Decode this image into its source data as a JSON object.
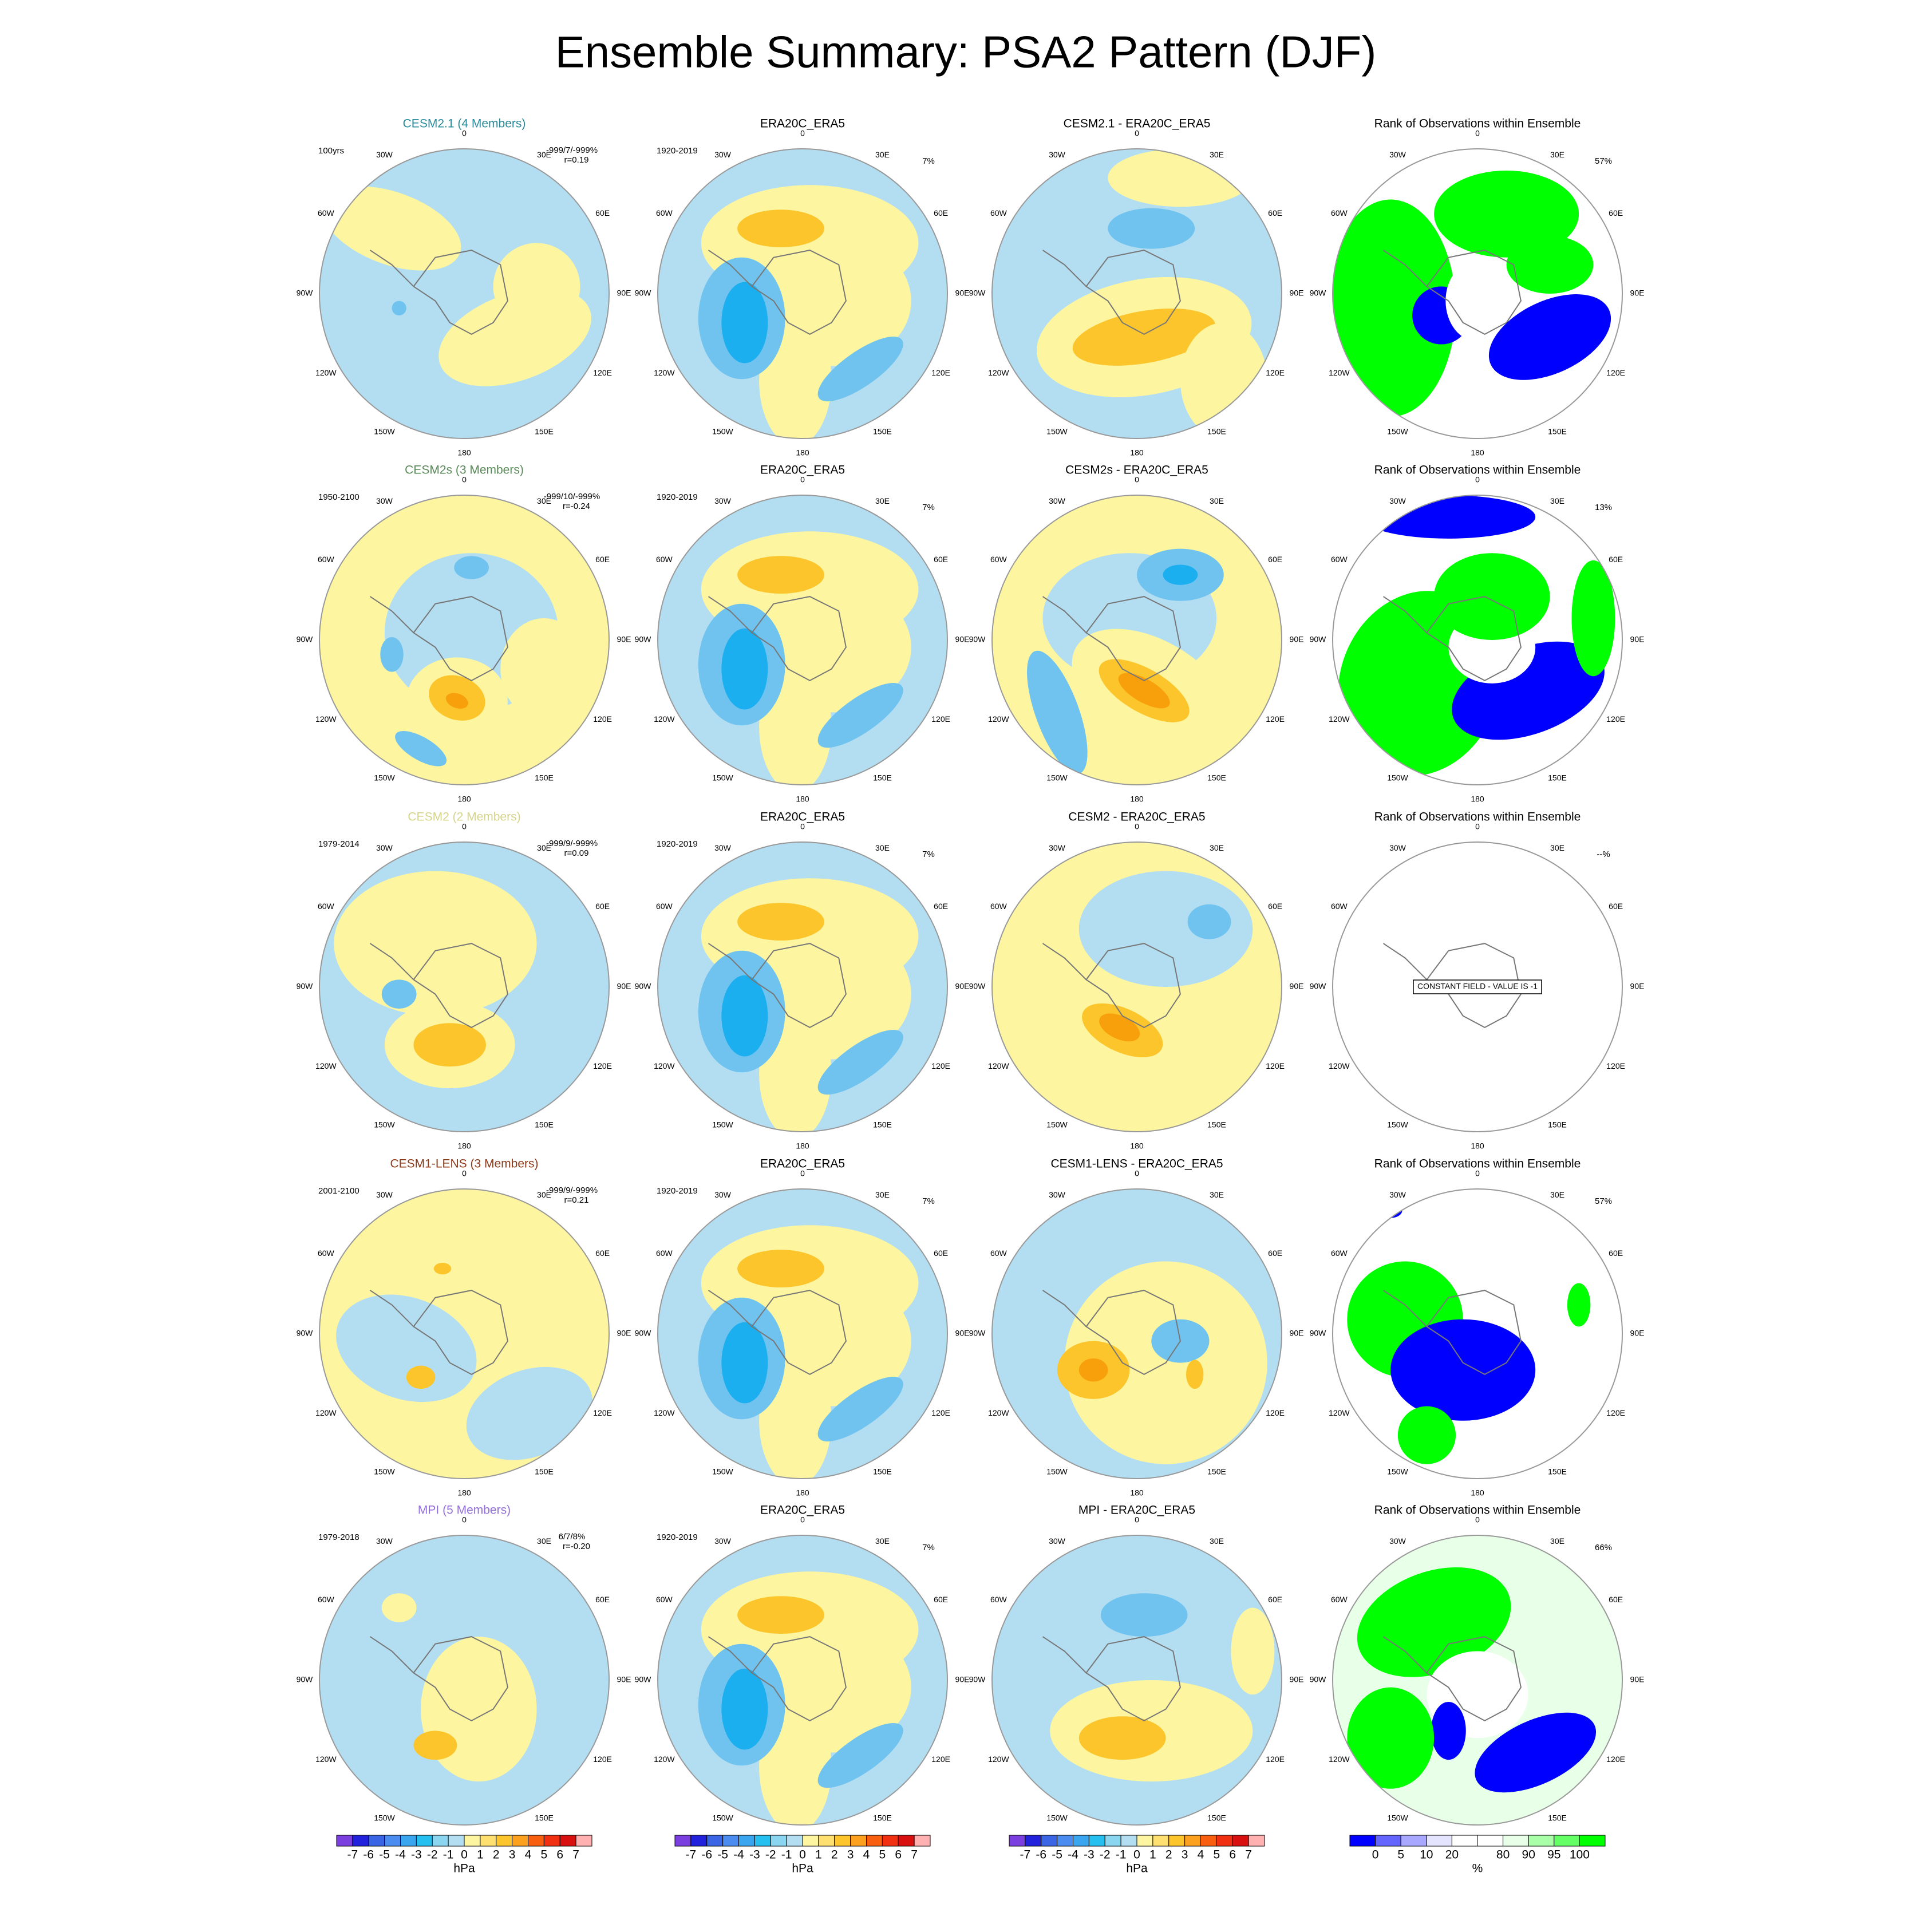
{
  "title": "Ensemble Summary: PSA2 Pattern (DJF)",
  "lon_labels": [
    "0",
    "30E",
    "60E",
    "90E",
    "120E",
    "150E",
    "180",
    "150W",
    "120W",
    "90W",
    "60W",
    "30W"
  ],
  "rows": [
    {
      "model": {
        "title": "CESM2.1 (4 Members)",
        "color": "#2a8a9a",
        "period": "100yrs",
        "stats": "-999/7/-999%",
        "r": "r=0.19"
      },
      "obs": {
        "title": "ERA20C_ERA5",
        "period": "1920-2019",
        "pct": "7%"
      },
      "diff": {
        "title": "CESM2.1 - ERA20C_ERA5"
      },
      "rank": {
        "title": "Rank of Observations within Ensemble",
        "pct": "57%"
      }
    },
    {
      "model": {
        "title": "CESM2s (3 Members)",
        "color": "#5a8a5a",
        "period": "1950-2100",
        "stats": "-999/10/-999%",
        "r": "r=-0.24"
      },
      "obs": {
        "title": "ERA20C_ERA5",
        "period": "1920-2019",
        "pct": "7%"
      },
      "diff": {
        "title": "CESM2s - ERA20C_ERA5"
      },
      "rank": {
        "title": "Rank of Observations within Ensemble",
        "pct": "13%"
      }
    },
    {
      "model": {
        "title": "CESM2 (2 Members)",
        "color": "#d4d48a",
        "period": "1979-2014",
        "stats": "-999/9/-999%",
        "r": "r=0.09"
      },
      "obs": {
        "title": "ERA20C_ERA5",
        "period": "1920-2019",
        "pct": "7%"
      },
      "diff": {
        "title": "CESM2 - ERA20C_ERA5"
      },
      "rank": {
        "title": "Rank of Observations within Ensemble",
        "pct": "--%",
        "note": "CONSTANT FIELD - VALUE IS -1"
      }
    },
    {
      "model": {
        "title": "CESM1-LENS (3 Members)",
        "color": "#8b3a1a",
        "period": "2001-2100",
        "stats": "-999/9/-999%",
        "r": "r=0.21"
      },
      "obs": {
        "title": "ERA20C_ERA5",
        "period": "1920-2019",
        "pct": "7%"
      },
      "diff": {
        "title": "CESM1-LENS - ERA20C_ERA5"
      },
      "rank": {
        "title": "Rank of Observations within Ensemble",
        "pct": "57%"
      }
    },
    {
      "model": {
        "title": "MPI (5 Members)",
        "color": "#9370db",
        "period": "1979-2018",
        "stats": "6/7/8%",
        "r": "r=-0.20"
      },
      "obs": {
        "title": "ERA20C_ERA5",
        "period": "1920-2019",
        "pct": "7%"
      },
      "diff": {
        "title": "MPI - ERA20C_ERA5"
      },
      "rank": {
        "title": "Rank of Observations within Ensemble",
        "pct": "66%"
      }
    }
  ],
  "colorbars": [
    {
      "labels": [
        "-7",
        "-6",
        "-5",
        "-4",
        "-3",
        "-2",
        "-1",
        "0",
        "1",
        "2",
        "3",
        "4",
        "5",
        "6",
        "7"
      ],
      "unit": "hPa"
    },
    {
      "labels": [
        "-7",
        "-6",
        "-5",
        "-4",
        "-3",
        "-2",
        "-1",
        "0",
        "1",
        "2",
        "3",
        "4",
        "5",
        "6",
        "7"
      ],
      "unit": "hPa"
    },
    {
      "labels": [
        "-7",
        "-6",
        "-5",
        "-4",
        "-3",
        "-2",
        "-1",
        "0",
        "1",
        "2",
        "3",
        "4",
        "5",
        "6",
        "7"
      ],
      "unit": "hPa"
    },
    {
      "labels": [
        "0",
        "5",
        "10",
        "20",
        "80",
        "90",
        "95",
        "100"
      ],
      "unit": "%"
    }
  ]
}
